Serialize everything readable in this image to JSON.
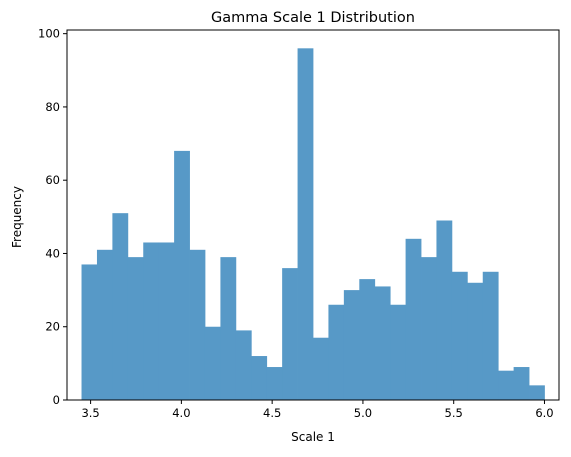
{
  "chart_data": {
    "type": "bar",
    "title": "Gamma Scale 1 Distribution",
    "xlabel": "Scale 1",
    "ylabel": "Frequency",
    "bin_edges": [
      3.45,
      3.535,
      3.62,
      3.705,
      3.79,
      3.875,
      3.96,
      4.045,
      4.13,
      4.215,
      4.3,
      4.385,
      4.47,
      4.555,
      4.64,
      4.725,
      4.81,
      4.895,
      4.98,
      5.065,
      5.15,
      5.235,
      5.32,
      5.405,
      5.49,
      5.575,
      5.66,
      5.745,
      5.83,
      5.915,
      6.0
    ],
    "values": [
      37,
      41,
      51,
      39,
      43,
      43,
      68,
      41,
      20,
      39,
      19,
      12,
      9,
      36,
      96,
      17,
      26,
      30,
      33,
      31,
      26,
      44,
      39,
      49,
      35,
      32,
      35,
      8,
      9,
      4
    ],
    "xlim": [
      3.37,
      6.08
    ],
    "ylim": [
      0,
      101
    ],
    "xticks": [
      3.5,
      4.0,
      4.5,
      5.0,
      5.5,
      6.0
    ],
    "xtick_labels": [
      "3.5",
      "4.0",
      "4.5",
      "5.0",
      "5.5",
      "6.0"
    ],
    "yticks": [
      0,
      20,
      40,
      60,
      80,
      100
    ],
    "ytick_labels": [
      "0",
      "20",
      "40",
      "60",
      "80",
      "100"
    ],
    "bar_color": "#5799c7",
    "grid": false,
    "legend": "none"
  }
}
